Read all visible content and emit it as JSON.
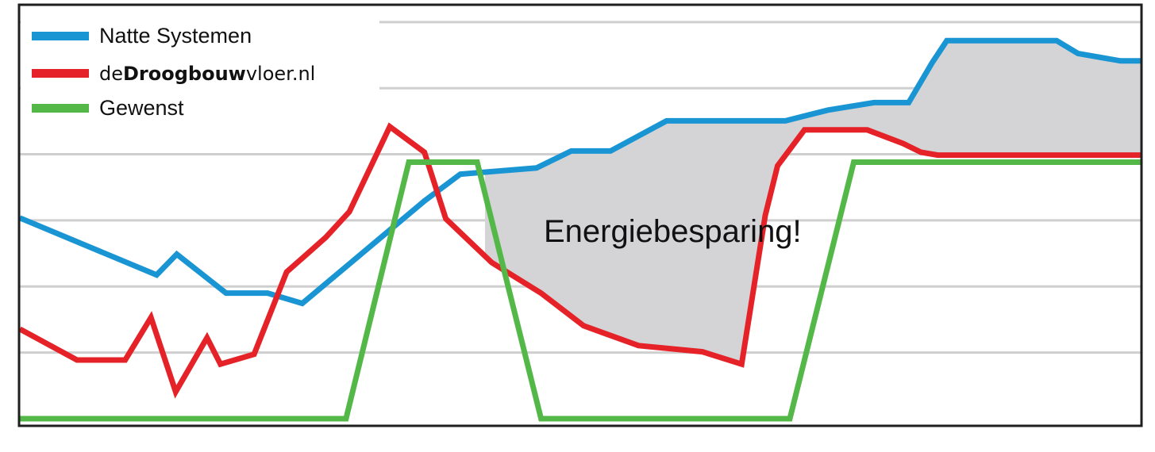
{
  "chart_data": {
    "type": "line",
    "title": "",
    "xlabel": "",
    "ylabel": "",
    "xlim": [
      0,
      100
    ],
    "ylim": [
      0,
      100
    ],
    "grid": true,
    "gridlines_y": [
      16,
      32,
      48,
      64,
      80,
      96
    ],
    "legend_position": "top-left",
    "annotation": "Energiebesparing!",
    "series": [
      {
        "name": "Natte Systemen",
        "legend_parts": [
          {
            "text": "Natte Systemen",
            "weight": "normal"
          }
        ],
        "color": "#1a95d3",
        "x": [
          0,
          12.2,
          14,
          18.4,
          22.1,
          25.2,
          30.6,
          36.1,
          39.3,
          46.1,
          49.2,
          52.7,
          57.7,
          62.6,
          68.3,
          72.1,
          76.2,
          79.3,
          81.4,
          82.7,
          85.3,
          92.5,
          94.4,
          98.2,
          100
        ],
        "y": [
          48.6,
          34.8,
          39.8,
          30.4,
          30.4,
          27.9,
          40.2,
          52.7,
          59.2,
          60.7,
          64.8,
          64.8,
          72.1,
          72.1,
          72.1,
          74.7,
          76.5,
          76.5,
          86.2,
          91.5,
          91.5,
          91.5,
          88.4,
          86.6,
          86.6
        ]
      },
      {
        "name": "deDroogbouwvloer.nl",
        "legend_parts": [
          {
            "text": "de",
            "weight": "light"
          },
          {
            "text": "Droogbouw",
            "weight": "bold"
          },
          {
            "text": "vloer.nl",
            "weight": "light"
          }
        ],
        "color": "#e52228",
        "x": [
          0,
          5.1,
          9.4,
          11.7,
          13.9,
          16.7,
          17.9,
          20.9,
          23.8,
          27.3,
          29.4,
          33,
          36.1,
          38,
          42.1,
          46.5,
          50.3,
          55.2,
          60.9,
          64.4,
          66.5,
          67.6,
          70,
          75.6,
          78.8,
          80.4,
          81.9,
          83.9,
          84.9,
          90.9,
          92.7,
          96.8,
          100
        ],
        "y": [
          21.7,
          14.2,
          14.2,
          24.5,
          6.5,
          19.6,
          13.2,
          15.6,
          35.5,
          43.9,
          50.1,
          70.7,
          64.5,
          48.4,
          37.8,
          30.4,
          22.5,
          17.7,
          16.2,
          13.2,
          49.2,
          61.2,
          69.9,
          69.9,
          66.6,
          64.5,
          63.8,
          63.8,
          63.8,
          63.8,
          63.8,
          63.8,
          63.8
        ]
      },
      {
        "name": "Gewenst",
        "legend_parts": [
          {
            "text": "Gewenst",
            "weight": "normal"
          }
        ],
        "color": "#54b848",
        "x": [
          0,
          29.1,
          34.7,
          40.8,
          46.5,
          68.7,
          74.4,
          100
        ],
        "y": [
          0,
          0,
          62.1,
          62.1,
          0,
          0,
          62.1,
          62.1
        ]
      }
    ]
  }
}
